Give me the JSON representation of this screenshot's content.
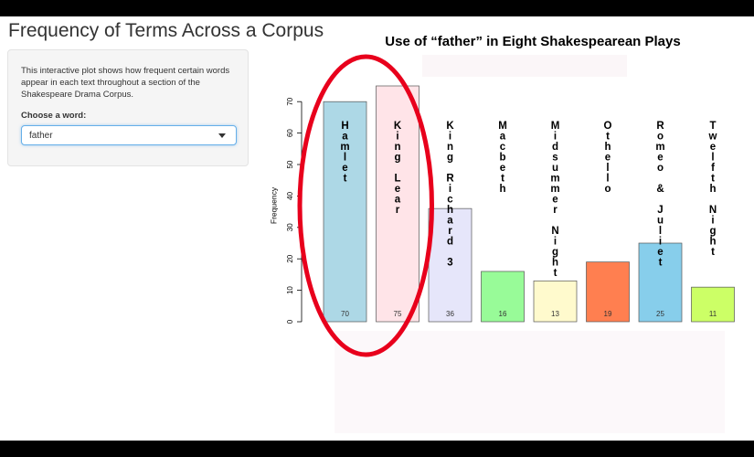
{
  "app": {
    "title": "Frequency of Terms Across a Corpus",
    "description": "This interactive plot shows how frequent certain words appear in each text throughout a section of the Shakespeare Drama Corpus.",
    "word_label": "Choose a word:",
    "word_value": "father"
  },
  "chart_data": {
    "type": "bar",
    "title": "Use of “father” in Eight Shakespearean Plays",
    "xlabel": "",
    "ylabel": "Frequency",
    "ylim": [
      0,
      75
    ],
    "yticks": [
      0,
      10,
      20,
      30,
      40,
      50,
      60,
      70
    ],
    "grid": false,
    "categories": [
      "Hamlet",
      "King Lear",
      "King Richard 3",
      "Macbeth",
      "Midsummer Night",
      "Othello",
      "Romeo & Juliet",
      "Twelfth Night"
    ],
    "values": [
      70,
      75,
      36,
      16,
      13,
      19,
      25,
      11
    ],
    "colors": [
      "#add8e6",
      "#ffe4e8",
      "#e6e6fa",
      "#98fb98",
      "#fffacd",
      "#ff7f50",
      "#87ceeb",
      "#ccff66"
    ],
    "highlight_color": "#e8001c",
    "highlight_targets": [
      "Hamlet",
      "King Lear"
    ]
  }
}
